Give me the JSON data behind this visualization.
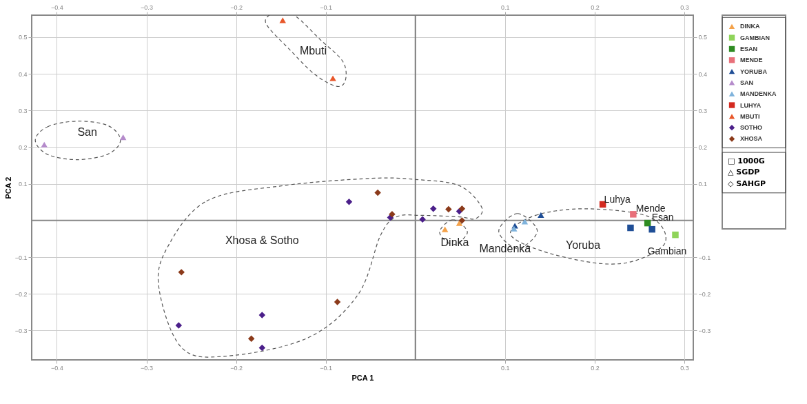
{
  "chart_data": {
    "type": "scatter",
    "xlabel": "PCA 1",
    "ylabel": "PCA 2",
    "xlim": [
      -0.428,
      0.31
    ],
    "ylim": [
      -0.38,
      0.56
    ],
    "xticks": [
      -0.4,
      -0.3,
      -0.2,
      -0.1,
      0.1,
      0.2,
      0.3
    ],
    "yticks": [
      -0.3,
      -0.2,
      -0.1,
      0.1,
      0.2,
      0.3,
      0.4,
      0.5
    ],
    "x2lim": [
      -0.428,
      0.31
    ],
    "x2ticks": [
      -0.4,
      -0.3,
      -0.2,
      -0.1,
      0.1,
      0.2,
      0.3
    ],
    "y2lim": [
      -0.38,
      0.56
    ],
    "y2ticks": [
      -0.3,
      -0.2,
      -0.1,
      0.1,
      0.2,
      0.3,
      0.4,
      0.5
    ],
    "grid": true,
    "legend": "right",
    "ref_lines": [
      {
        "axis": "x",
        "value": 0,
        "color": "#7a7a7a"
      },
      {
        "axis": "y",
        "value": 0,
        "color": "#888888"
      }
    ],
    "series": [
      {
        "name": "DINKA",
        "color": "#f4a24a",
        "marker": "triangle",
        "x": [
          0.033,
          0.049
        ],
        "values": [
          -0.024,
          -0.007
        ]
      },
      {
        "name": "GAMBIAN",
        "color": "#8fd45a",
        "marker": "square",
        "x": [
          0.29
        ],
        "values": [
          -0.039
        ]
      },
      {
        "name": "ESAN",
        "color": "#2e8b22",
        "marker": "square",
        "x": [
          0.259
        ],
        "values": [
          -0.007
        ]
      },
      {
        "name": "MENDE",
        "color": "#e8707a",
        "marker": "square",
        "x": [
          0.243
        ],
        "values": [
          0.017
        ]
      },
      {
        "name": "YORUBA",
        "color": "#1f4e96",
        "marker": "triangle",
        "x": [
          0.111,
          0.14
        ],
        "values": [
          -0.014,
          0.015
        ]
      },
      {
        "name": "SAN",
        "color": "#b58bcb",
        "marker": "triangle",
        "x": [
          -0.414,
          -0.326
        ],
        "values": [
          0.207,
          0.227
        ]
      },
      {
        "name": "MANDENKA",
        "color": "#7fb3dc",
        "marker": "triangle",
        "x": [
          0.122,
          0.11
        ],
        "values": [
          -0.003,
          -0.022
        ]
      },
      {
        "name": "LUHYA",
        "color": "#d42a20",
        "marker": "square",
        "x": [
          0.209
        ],
        "values": [
          0.044
        ]
      },
      {
        "name": "MBUTI",
        "color": "#e8572a",
        "marker": "triangle",
        "x": [
          -0.148,
          -0.092
        ],
        "values": [
          0.546,
          0.388
        ]
      },
      {
        "name": "SOTHO",
        "color": "#4b1f8a",
        "marker": "diamond",
        "x": [
          -0.074,
          -0.028,
          0.008,
          0.02,
          0.049,
          -0.264,
          -0.171,
          -0.171
        ],
        "values": [
          0.051,
          0.008,
          0.003,
          0.032,
          0.025,
          -0.286,
          -0.258,
          -0.347
        ]
      },
      {
        "name": "XHOSA",
        "color": "#8b3a1a",
        "marker": "diamond",
        "x": [
          -0.042,
          -0.026,
          0.037,
          0.052,
          0.052,
          -0.261,
          -0.087,
          -0.183
        ],
        "values": [
          0.076,
          0.017,
          0.031,
          0.032,
          0.0,
          -0.141,
          -0.222,
          -0.322
        ]
      },
      {
        "color": "#1f4e96",
        "marker": "square",
        "x": [
          0.24,
          0.264
        ],
        "values": [
          -0.02,
          -0.024
        ]
      }
    ],
    "annotations": [
      "Mbuti",
      "San",
      "Xhosa & Sotho",
      "Dinka",
      "Mandenka",
      "Yoruba",
      "□ 1000G",
      "△ SGDP",
      "◇ SAHGP",
      {
        "text": "Luhya",
        "x": 0.209,
        "y": 0.044
      },
      {
        "text": "Mende",
        "x": 0.243,
        "y": 0.017
      },
      {
        "text": "Esan",
        "x": 0.259,
        "y": -0.007
      },
      {
        "text": "Gambian",
        "x": 0.29,
        "y": -0.039
      }
    ]
  }
}
